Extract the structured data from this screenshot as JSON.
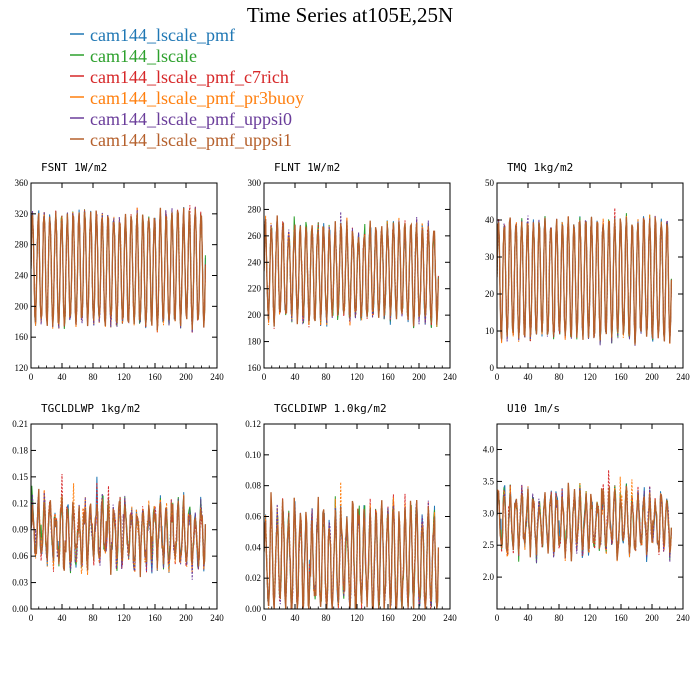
{
  "figure": {
    "title": "Time Series at105E,25N"
  },
  "legend": [
    {
      "name": "cam144_lscale_pmf",
      "color": "#1f77b4"
    },
    {
      "name": "cam144_lscale",
      "color": "#2ca02c"
    },
    {
      "name": "cam144_lscale_pmf_c7rich",
      "color": "#d62728"
    },
    {
      "name": "cam144_lscale_pmf_pr3buoy",
      "color": "#ff7f0e"
    },
    {
      "name": "cam144_lscale_pmf_uppsi0",
      "color": "#6a3d9a"
    },
    {
      "name": "cam144_lscale_pmf_uppsi1",
      "color": "#b5602c"
    }
  ],
  "chart_data": [
    {
      "type": "line",
      "title": "FSNT   1W/m2",
      "xlim": [
        0,
        240
      ],
      "ylim": [
        120,
        360
      ],
      "xticks": [
        0,
        40,
        80,
        120,
        160,
        200,
        240
      ],
      "yticks": [
        120,
        160,
        200,
        240,
        280,
        320,
        360
      ],
      "ytick_labels": [
        "120",
        "160",
        "200",
        "240",
        "280",
        "320",
        "360"
      ],
      "n_points": 226,
      "cycle_period": 7.5,
      "mid": 248,
      "amplitude": 72,
      "noise": 10,
      "series": [
        {
          "name": "cam144_lscale_pmf"
        },
        {
          "name": "cam144_lscale"
        },
        {
          "name": "cam144_lscale_pmf_c7rich"
        },
        {
          "name": "cam144_lscale_pmf_pr3buoy"
        },
        {
          "name": "cam144_lscale_pmf_uppsi0"
        },
        {
          "name": "cam144_lscale_pmf_uppsi1"
        }
      ]
    },
    {
      "type": "line",
      "title": "FLNT   1W/m2",
      "xlim": [
        0,
        240
      ],
      "ylim": [
        160,
        300
      ],
      "xticks": [
        0,
        40,
        80,
        120,
        160,
        200,
        240
      ],
      "yticks": [
        160,
        180,
        200,
        220,
        240,
        260,
        280,
        300
      ],
      "ytick_labels": [
        "160",
        "180",
        "200",
        "220",
        "240",
        "260",
        "280",
        "300"
      ],
      "n_points": 226,
      "cycle_period": 7.5,
      "mid": 232,
      "amplitude": 35,
      "noise": 8,
      "series": [
        {
          "name": "cam144_lscale_pmf"
        },
        {
          "name": "cam144_lscale"
        },
        {
          "name": "cam144_lscale_pmf_c7rich"
        },
        {
          "name": "cam144_lscale_pmf_pr3buoy"
        },
        {
          "name": "cam144_lscale_pmf_uppsi0"
        },
        {
          "name": "cam144_lscale_pmf_uppsi1"
        }
      ]
    },
    {
      "type": "line",
      "title": "TMQ   1kg/m2",
      "xlim": [
        0,
        240
      ],
      "ylim": [
        0,
        50
      ],
      "xticks": [
        0,
        40,
        80,
        120,
        160,
        200,
        240
      ],
      "yticks": [
        0,
        10,
        20,
        30,
        40,
        50
      ],
      "ytick_labels": [
        "0",
        "10",
        "20",
        "30",
        "40",
        "50"
      ],
      "n_points": 226,
      "cycle_period": 7.5,
      "mid": 24,
      "amplitude": 16,
      "noise": 2,
      "series": [
        {
          "name": "cam144_lscale_pmf"
        },
        {
          "name": "cam144_lscale"
        },
        {
          "name": "cam144_lscale_pmf_c7rich"
        },
        {
          "name": "cam144_lscale_pmf_pr3buoy"
        },
        {
          "name": "cam144_lscale_pmf_uppsi0"
        },
        {
          "name": "cam144_lscale_pmf_uppsi1"
        }
      ]
    },
    {
      "type": "line",
      "title": "TGCLDLWP   1kg/m2",
      "xlim": [
        0,
        240
      ],
      "ylim": [
        0,
        0.21
      ],
      "xticks": [
        0,
        40,
        80,
        120,
        160,
        200,
        240
      ],
      "yticks": [
        0,
        0.03,
        0.06,
        0.09,
        0.12,
        0.15,
        0.18,
        0.21
      ],
      "ytick_labels": [
        "0.00",
        "0.03",
        "0.06",
        "0.09",
        "0.12",
        "0.15",
        "0.18",
        "0.21"
      ],
      "n_points": 226,
      "cycle_period": 7.5,
      "mid": 0.085,
      "amplitude": 0.03,
      "noise": 0.02,
      "series": [
        {
          "name": "cam144_lscale_pmf"
        },
        {
          "name": "cam144_lscale"
        },
        {
          "name": "cam144_lscale_pmf_c7rich"
        },
        {
          "name": "cam144_lscale_pmf_pr3buoy"
        },
        {
          "name": "cam144_lscale_pmf_uppsi0"
        },
        {
          "name": "cam144_lscale_pmf_uppsi1"
        }
      ]
    },
    {
      "type": "line",
      "title": "TGCLDIWP   1.0kg/m2",
      "xlim": [
        0,
        240
      ],
      "ylim": [
        0,
        0.12
      ],
      "xticks": [
        0,
        40,
        80,
        120,
        160,
        200,
        240
      ],
      "yticks": [
        0,
        0.02,
        0.04,
        0.06,
        0.08,
        0.1,
        0.12
      ],
      "ytick_labels": [
        "0.00",
        "0.02",
        "0.04",
        "0.06",
        "0.08",
        "0.10",
        "0.12"
      ],
      "n_points": 226,
      "cycle_period": 7.5,
      "mid": 0.032,
      "amplitude": 0.03,
      "noise": 0.012,
      "series": [
        {
          "name": "cam144_lscale_pmf"
        },
        {
          "name": "cam144_lscale"
        },
        {
          "name": "cam144_lscale_pmf_c7rich"
        },
        {
          "name": "cam144_lscale_pmf_pr3buoy"
        },
        {
          "name": "cam144_lscale_pmf_uppsi0"
        },
        {
          "name": "cam144_lscale_pmf_uppsi1"
        }
      ]
    },
    {
      "type": "line",
      "title": "U10   1m/s",
      "xlim": [
        0,
        240
      ],
      "ylim": [
        1.5,
        4.4
      ],
      "xticks": [
        0,
        40,
        80,
        120,
        160,
        200,
        240
      ],
      "yticks": [
        2.0,
        2.5,
        3.0,
        3.5,
        4.0
      ],
      "ytick_labels": [
        "2.0",
        "2.5",
        "3.0",
        "3.5",
        "4.0"
      ],
      "n_points": 226,
      "cycle_period": 7.5,
      "mid": 2.85,
      "amplitude": 0.4,
      "noise": 0.22,
      "series": [
        {
          "name": "cam144_lscale_pmf"
        },
        {
          "name": "cam144_lscale"
        },
        {
          "name": "cam144_lscale_pmf_c7rich"
        },
        {
          "name": "cam144_lscale_pmf_pr3buoy"
        },
        {
          "name": "cam144_lscale_pmf_uppsi0"
        },
        {
          "name": "cam144_lscale_pmf_uppsi1"
        }
      ]
    }
  ]
}
